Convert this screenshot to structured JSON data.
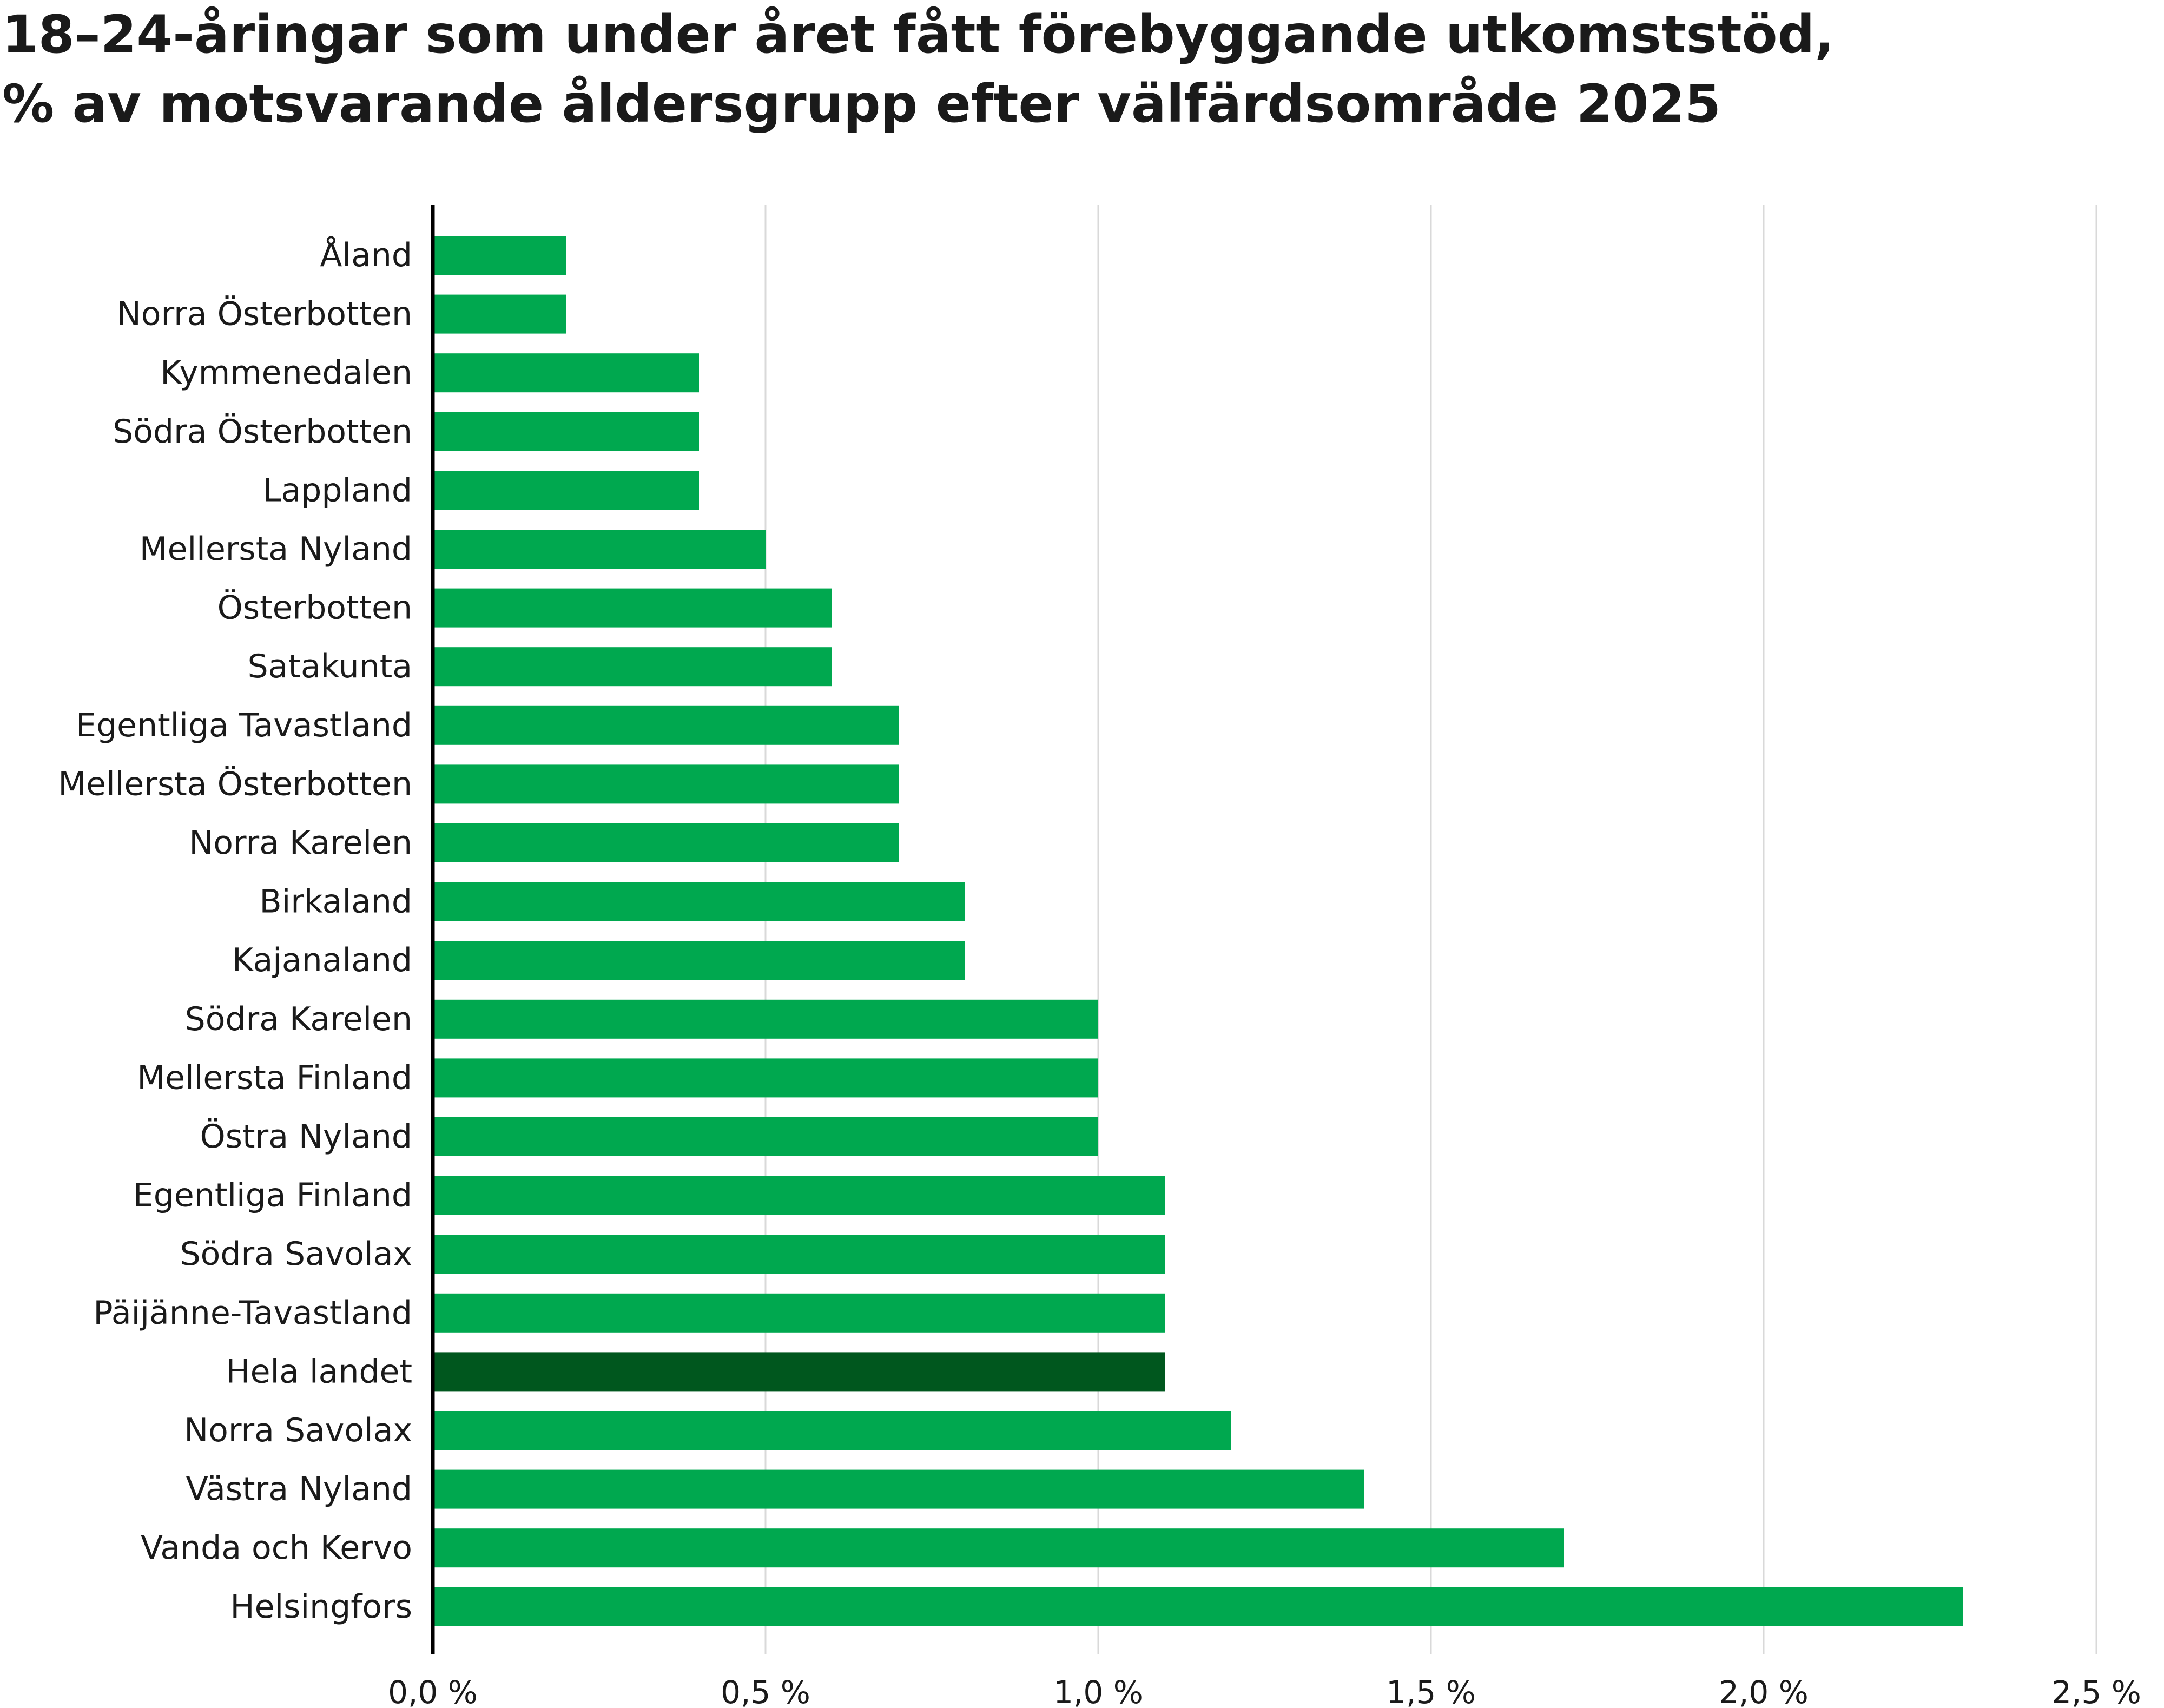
{
  "chart_data": {
    "type": "bar",
    "orientation": "horizontal",
    "title": "18–24-åringar som under året fått förebyggande utkomststöd,\n% av motsvarande åldersgrupp efter välfärdsområde 2025",
    "xlabel": "",
    "ylabel": "",
    "xlim": [
      0,
      2.5
    ],
    "x_ticks": [
      0,
      0.5,
      1.0,
      1.5,
      2.0,
      2.5
    ],
    "x_tick_labels": [
      "0,0 %",
      "0,5 %",
      "1,0 %",
      "1,5 %",
      "2,0 %",
      "2,5 %"
    ],
    "grid": "vertical",
    "legend": "none",
    "categories": [
      "Åland",
      "Norra Österbotten",
      "Kymmenedalen",
      "Södra Österbotten",
      "Lappland",
      "Mellersta Nyland",
      "Österbotten",
      "Satakunta",
      "Egentliga Tavastland",
      "Mellersta Österbotten",
      "Norra Karelen",
      "Birkaland",
      "Kajanaland",
      "Södra Karelen",
      "Mellersta Finland",
      "Östra Nyland",
      "Egentliga Finland",
      "Södra Savolax",
      "Päijänne-Tavastland",
      "Hela landet",
      "Norra Savolax",
      "Västra Nyland",
      "Vanda och Kervo",
      "Helsingfors"
    ],
    "values": [
      0.2,
      0.2,
      0.4,
      0.4,
      0.4,
      0.5,
      0.6,
      0.6,
      0.7,
      0.7,
      0.7,
      0.8,
      0.8,
      1.0,
      1.0,
      1.0,
      1.1,
      1.1,
      1.1,
      1.1,
      1.2,
      1.4,
      1.7,
      2.3
    ],
    "highlight_category": "Hela landet",
    "colors": {
      "bar": "#00a84f",
      "highlight": "#00571e",
      "grid": "#d9d9d9",
      "axis": "#000000"
    }
  }
}
